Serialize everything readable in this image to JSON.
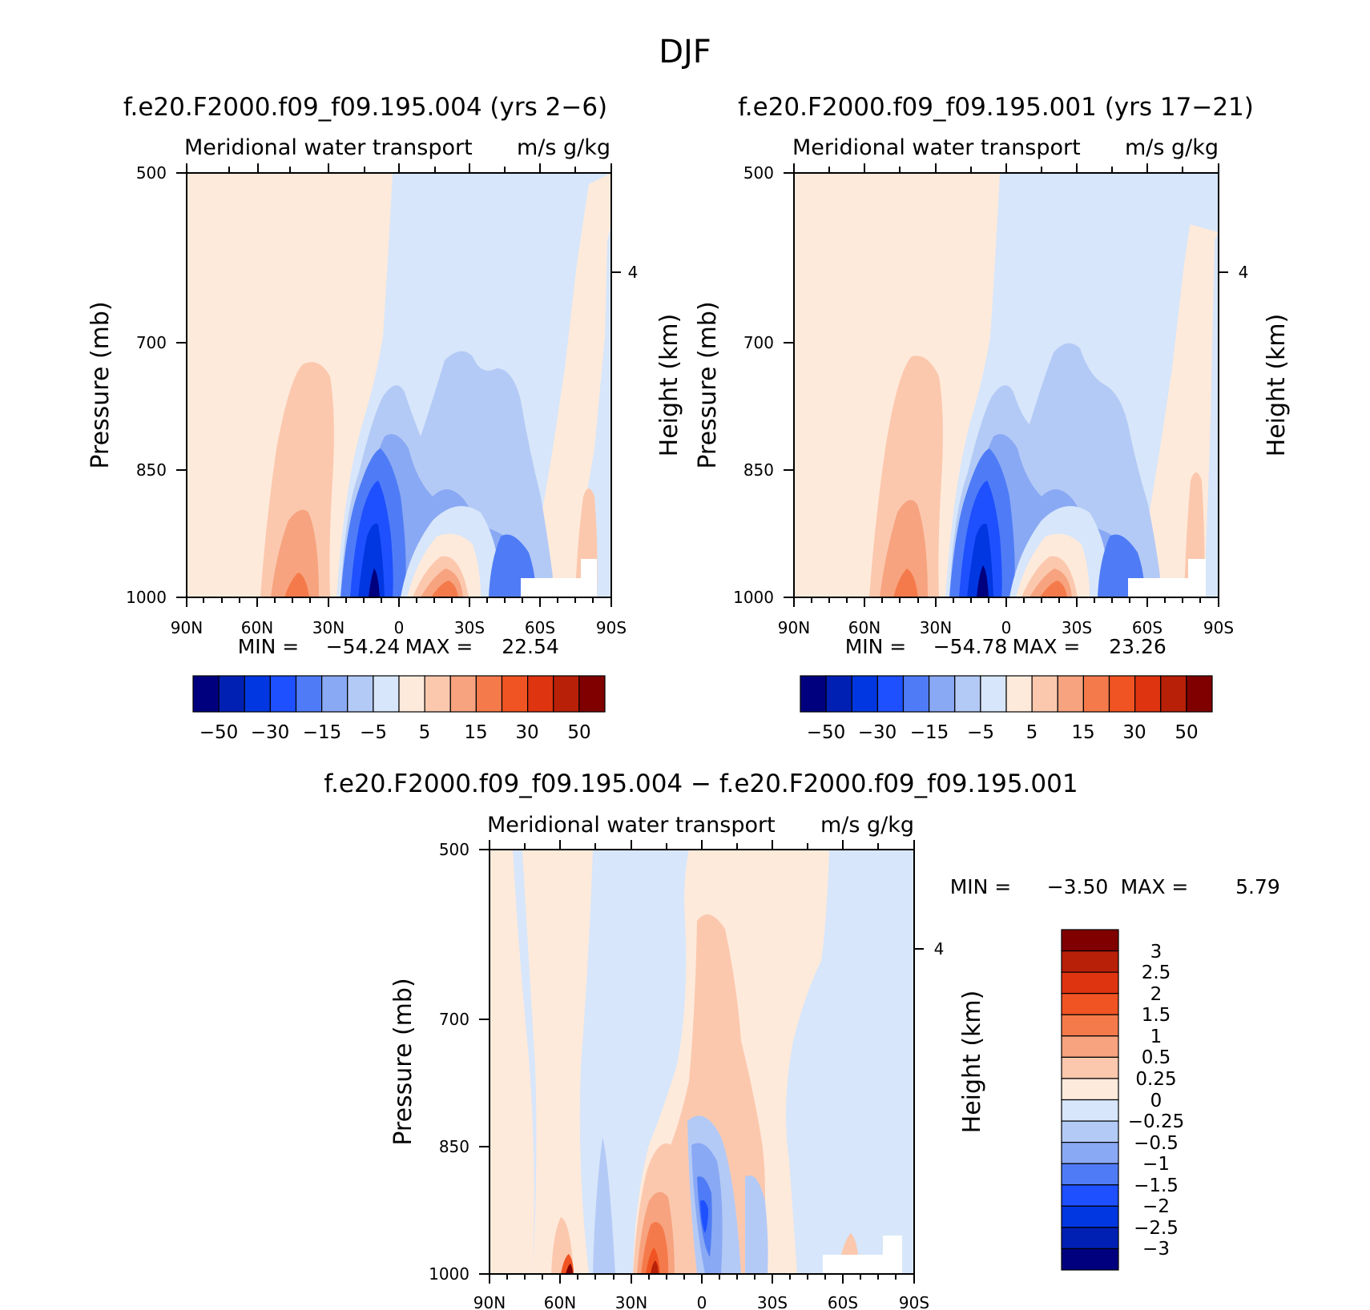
{
  "figure_title": "DJF",
  "colors": {
    "main_scale": [
      "#00007f",
      "#0020b4",
      "#0037e0",
      "#1e50ff",
      "#4f7cf6",
      "#8aa9f4",
      "#b4caf6",
      "#d7e6fa",
      "#feeadb",
      "#fbc8ae",
      "#f7a37f",
      "#f57a4b",
      "#f05422",
      "#de3410",
      "#b82008",
      "#800000"
    ],
    "diff_scale": [
      "#00007f",
      "#0020b4",
      "#0037e0",
      "#1e50ff",
      "#4f7cf6",
      "#8aa9f4",
      "#b4caf6",
      "#d7e6fa",
      "#feeadb",
      "#fbc8ae",
      "#f7a37f",
      "#f57a4b",
      "#f05422",
      "#de3410",
      "#b82008",
      "#800000"
    ]
  },
  "chart_data": [
    {
      "type": "heatmap",
      "title": "f.e20.F2000.f09_f09.195.004 (yrs 2−6)",
      "subtitle_left": "Meridional water transport",
      "subtitle_right": "m/s g/kg",
      "ylabel": "Pressure (mb)",
      "ylabel_right": "Height (km)",
      "x_ticks": [
        "90N",
        "60N",
        "30N",
        "0",
        "30S",
        "60S",
        "90S"
      ],
      "x_range": [
        90,
        -90
      ],
      "y_ticks": [
        500,
        700,
        850,
        1000
      ],
      "y_range": [
        500,
        1000
      ],
      "right_ticks": [
        "4"
      ],
      "min_label": "MIN =",
      "min": "−54.24",
      "max_label": "MAX =",
      "max": "22.54",
      "colorbar_labels": [
        "−50",
        "−30",
        "−15",
        "−5",
        "5",
        "15",
        "30",
        "50"
      ]
    },
    {
      "type": "heatmap",
      "title": "f.e20.F2000.f09_f09.195.001 (yrs 17−21)",
      "subtitle_left": "Meridional water transport",
      "subtitle_right": "m/s g/kg",
      "ylabel": "Pressure (mb)",
      "ylabel_right": "Height (km)",
      "x_ticks": [
        "90N",
        "60N",
        "30N",
        "0",
        "30S",
        "60S",
        "90S"
      ],
      "x_range": [
        90,
        -90
      ],
      "y_ticks": [
        500,
        700,
        850,
        1000
      ],
      "y_range": [
        500,
        1000
      ],
      "right_ticks": [
        "4"
      ],
      "min_label": "MIN =",
      "min": "−54.78",
      "max_label": "MAX =",
      "max": "23.26",
      "colorbar_labels": [
        "−50",
        "−30",
        "−15",
        "−5",
        "5",
        "15",
        "30",
        "50"
      ]
    },
    {
      "type": "heatmap",
      "title": "f.e20.F2000.f09_f09.195.004 − f.e20.F2000.f09_f09.195.001",
      "subtitle_left": "Meridional water transport",
      "subtitle_right": "m/s g/kg",
      "ylabel": "Pressure (mb)",
      "ylabel_right": "Height (km)",
      "x_ticks": [
        "90N",
        "60N",
        "30N",
        "0",
        "30S",
        "60S",
        "90S"
      ],
      "x_range": [
        90,
        -90
      ],
      "y_ticks": [
        500,
        700,
        850,
        1000
      ],
      "y_range": [
        500,
        1000
      ],
      "right_ticks": [
        "4"
      ],
      "min_label": "MIN =",
      "min": "−3.50",
      "max_label": "MAX =",
      "max": "5.79",
      "colorbar_labels": [
        "3",
        "2.5",
        "2",
        "1.5",
        "1",
        "0.5",
        "0.25",
        "0",
        "−0.25",
        "−0.5",
        "−1",
        "−1.5",
        "−2",
        "−2.5",
        "−3"
      ]
    }
  ]
}
